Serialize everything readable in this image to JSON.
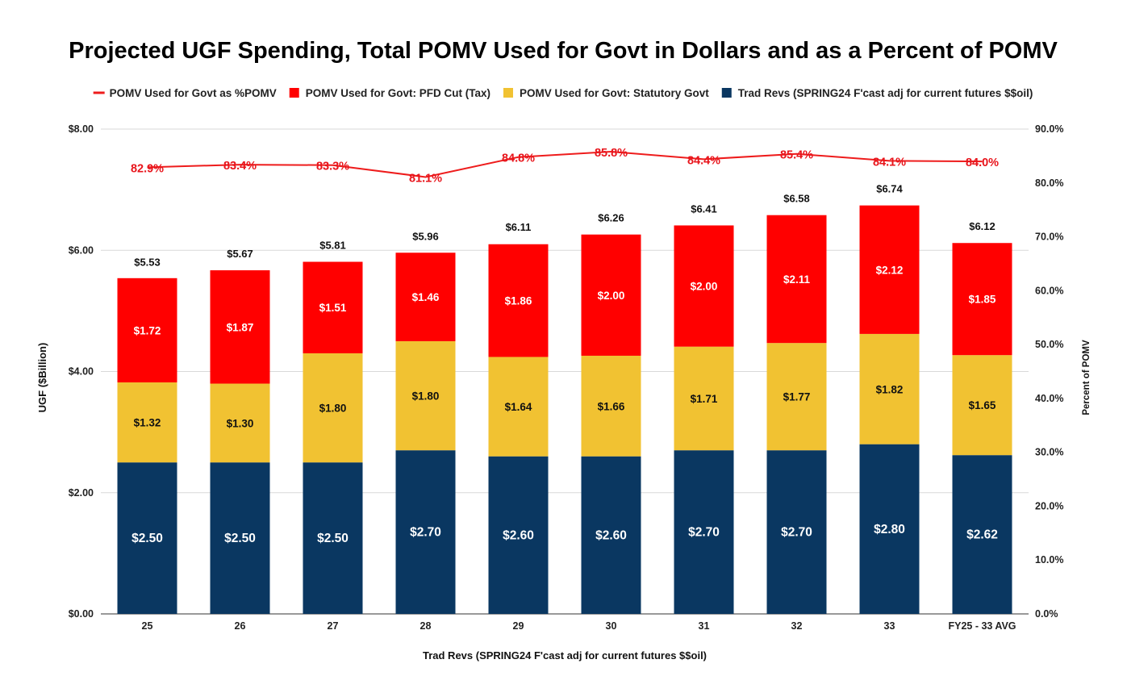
{
  "colors": {
    "line": "#ee1c1c",
    "pfd": "#ff0000",
    "statutory": "#f1c232",
    "trad": "#0a3761",
    "grid": "#d9d9d9"
  },
  "legend": [
    {
      "key": "line",
      "label": "POMV Used for Govt as %POMV",
      "shape": "line"
    },
    {
      "key": "pfd",
      "label": "POMV Used for Govt: PFD Cut (Tax)",
      "shape": "box"
    },
    {
      "key": "statutory",
      "label": "POMV Used for Govt: Statutory Govt",
      "shape": "box"
    },
    {
      "key": "trad",
      "label": "Trad Revs (SPRING24 F'cast adj for current futures $$oil)",
      "shape": "box"
    }
  ],
  "chart_data": {
    "type": "bar",
    "stacked": true,
    "title": "Projected UGF Spending, Total POMV Used for Govt in Dollars and as a Percent of POMV",
    "xlabel": "Trad Revs (SPRING24 F'cast adj for current futures $$oil)",
    "ylabel": "UGF ($Billion)",
    "y2label": "Percent of POMV",
    "ylim": [
      0,
      8
    ],
    "y2lim": [
      0,
      90
    ],
    "y_ticks": [
      "$0.00",
      "$2.00",
      "$4.00",
      "$6.00",
      "$8.00"
    ],
    "y_tick_values": [
      0,
      2,
      4,
      6,
      8
    ],
    "y2_ticks": [
      "0.0%",
      "10.0%",
      "20.0%",
      "30.0%",
      "40.0%",
      "50.0%",
      "60.0%",
      "70.0%",
      "80.0%",
      "90.0%"
    ],
    "y2_tick_values": [
      0,
      10,
      20,
      30,
      40,
      50,
      60,
      70,
      80,
      90
    ],
    "grid": true,
    "legend_position": "top",
    "categories": [
      "25",
      "26",
      "27",
      "28",
      "29",
      "30",
      "31",
      "32",
      "33",
      "FY25 - 33 AVG"
    ],
    "series": [
      {
        "key": "trad",
        "name": "Trad Revs (SPRING24 F'cast adj for current futures $$oil)",
        "values": [
          2.5,
          2.5,
          2.5,
          2.7,
          2.6,
          2.6,
          2.7,
          2.7,
          2.8,
          2.62
        ],
        "labels": [
          "$2.50",
          "$2.50",
          "$2.50",
          "$2.70",
          "$2.60",
          "$2.60",
          "$2.70",
          "$2.70",
          "$2.80",
          "$2.62"
        ]
      },
      {
        "key": "statutory",
        "name": "POMV Used for Govt: Statutory Govt",
        "values": [
          1.32,
          1.3,
          1.8,
          1.8,
          1.64,
          1.66,
          1.71,
          1.77,
          1.82,
          1.65
        ],
        "labels": [
          "$1.32",
          "$1.30",
          "$1.80",
          "$1.80",
          "$1.64",
          "$1.66",
          "$1.71",
          "$1.77",
          "$1.82",
          "$1.65"
        ]
      },
      {
        "key": "pfd",
        "name": "POMV Used for Govt: PFD Cut (Tax)",
        "values": [
          1.72,
          1.87,
          1.51,
          1.46,
          1.86,
          2.0,
          2.0,
          2.11,
          2.12,
          1.85
        ],
        "labels": [
          "$1.72",
          "$1.87",
          "$1.51",
          "$1.46",
          "$1.86",
          "$2.00",
          "$2.00",
          "$2.11",
          "$2.12",
          "$1.85"
        ]
      }
    ],
    "totals": [
      5.53,
      5.67,
      5.81,
      5.96,
      6.11,
      6.26,
      6.41,
      6.58,
      6.74,
      6.12
    ],
    "total_labels": [
      "$5.53",
      "$5.67",
      "$5.81",
      "$5.96",
      "$6.11",
      "$6.26",
      "$6.41",
      "$6.58",
      "$6.74",
      "$6.12"
    ],
    "line_series": {
      "key": "line",
      "name": "POMV Used for Govt as %POMV",
      "axis": "right",
      "values": [
        82.9,
        83.4,
        83.3,
        81.1,
        84.8,
        85.8,
        84.4,
        85.4,
        84.1,
        84.0
      ],
      "labels": [
        "82.9%",
        "83.4%",
        "83.3%",
        "81.1%",
        "84.8%",
        "85.8%",
        "84.4%",
        "85.4%",
        "84.1%",
        "84.0%"
      ]
    }
  }
}
